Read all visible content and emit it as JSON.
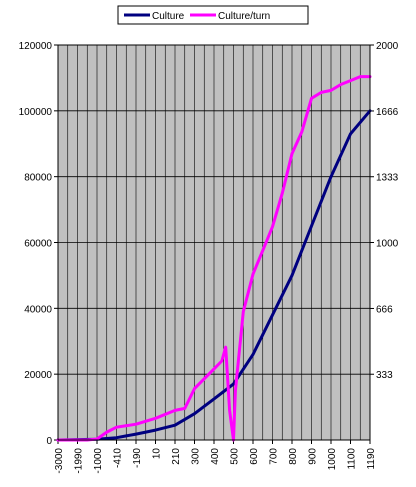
{
  "chart_data": {
    "type": "line",
    "title": "",
    "xlabel": "",
    "ylabel": "",
    "y_left_ticks": [
      "0",
      "20000",
      "40000",
      "60000",
      "80000",
      "100000",
      "120000"
    ],
    "y_left_lim": [
      0,
      120000
    ],
    "y_right_ticks": [
      "333",
      "666",
      "1000",
      "1333",
      "1666",
      "2000"
    ],
    "y_right_lim": [
      0,
      2000
    ],
    "x_tick_labels": [
      "-3000",
      "-1990",
      "-1000",
      "-410",
      "-190",
      "10",
      "210",
      "300",
      "400",
      "500",
      "600",
      "700",
      "800",
      "900",
      "1000",
      "1100",
      "1190"
    ],
    "grid": true,
    "plot_background": "#c0c0c0",
    "legend_position": "top",
    "series": [
      {
        "name": "Culture",
        "color": "#000080",
        "axis": "left",
        "x_index": [
          0,
          2,
          3,
          4,
          5,
          6,
          7,
          8,
          9,
          10,
          11,
          12,
          13,
          14,
          15,
          16
        ],
        "values": [
          0,
          200,
          700,
          1800,
          3000,
          4500,
          8000,
          12500,
          17000,
          26000,
          38000,
          50000,
          65000,
          80000,
          93000,
          100000
        ]
      },
      {
        "name": "Culture/turn",
        "color": "#ff00ff",
        "axis": "right",
        "x_index": [
          0,
          1.5,
          2,
          2.5,
          3,
          4,
          5,
          6,
          6.5,
          7,
          8,
          8.4,
          8.6,
          8.8,
          9,
          9.1,
          9.5,
          10,
          10.5,
          11,
          11.5,
          12,
          12.5,
          13,
          13.5,
          14,
          14.5,
          15,
          15.5,
          16
        ],
        "values": [
          0,
          0,
          5,
          40,
          65,
          80,
          110,
          150,
          160,
          260,
          360,
          400,
          470,
          150,
          0,
          250,
          650,
          840,
          960,
          1080,
          1250,
          1450,
          1560,
          1730,
          1760,
          1770,
          1800,
          1820,
          1840,
          1840
        ]
      }
    ]
  }
}
